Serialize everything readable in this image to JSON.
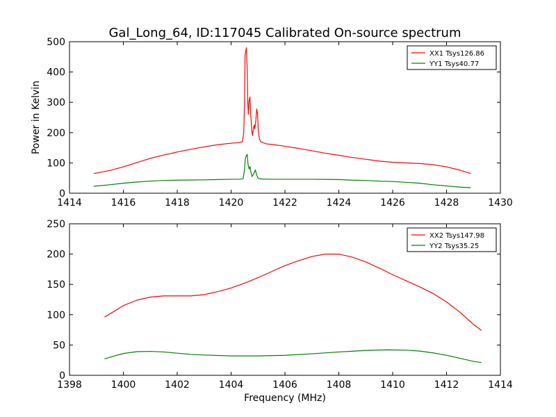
{
  "figure": {
    "title": "Gal_Long_64, ID:117045 Calibrated On-source spectrum",
    "ylabel": "Power in Kelvin",
    "xlabel": "Frequency (MHz)"
  },
  "chart_data": [
    {
      "type": "line",
      "xlim": [
        1414,
        1430
      ],
      "ylim": [
        0,
        500
      ],
      "xticks": [
        "1414",
        "1416",
        "1418",
        "1420",
        "1422",
        "1424",
        "1426",
        "1428",
        "1430"
      ],
      "yticks": [
        "0",
        "100",
        "200",
        "300",
        "400",
        "500"
      ],
      "legend_position": "top-right",
      "series": [
        {
          "name": "XX1 Tsys126.86",
          "color": "#ff0000",
          "points": [
            [
              1414.9,
              65
            ],
            [
              1415.5,
              75
            ],
            [
              1416,
              87
            ],
            [
              1416.5,
              101
            ],
            [
              1417,
              115
            ],
            [
              1417.5,
              126
            ],
            [
              1418,
              136
            ],
            [
              1418.5,
              145
            ],
            [
              1419,
              153
            ],
            [
              1419.5,
              160
            ],
            [
              1420,
              165
            ],
            [
              1420.3,
              167
            ],
            [
              1420.42,
              170
            ],
            [
              1420.47,
              200
            ],
            [
              1420.5,
              300
            ],
            [
              1420.52,
              455
            ],
            [
              1420.55,
              472
            ],
            [
              1420.57,
              480
            ],
            [
              1420.6,
              400
            ],
            [
              1420.62,
              300
            ],
            [
              1420.64,
              260
            ],
            [
              1420.67,
              305
            ],
            [
              1420.7,
              318
            ],
            [
              1420.73,
              260
            ],
            [
              1420.77,
              205
            ],
            [
              1420.8,
              190
            ],
            [
              1420.83,
              215
            ],
            [
              1420.86,
              225
            ],
            [
              1420.88,
              212
            ],
            [
              1420.92,
              240
            ],
            [
              1420.95,
              278
            ],
            [
              1420.98,
              265
            ],
            [
              1421.01,
              210
            ],
            [
              1421.05,
              180
            ],
            [
              1421.1,
              170
            ],
            [
              1421.3,
              163
            ],
            [
              1421.6,
              160
            ],
            [
              1422,
              155
            ],
            [
              1422.5,
              148
            ],
            [
              1423,
              140
            ],
            [
              1423.5,
              132
            ],
            [
              1424,
              125
            ],
            [
              1424.5,
              118
            ],
            [
              1425,
              112
            ],
            [
              1425.5,
              106
            ],
            [
              1426,
              102
            ],
            [
              1426.5,
              100
            ],
            [
              1427,
              98
            ],
            [
              1427.5,
              94
            ],
            [
              1428,
              87
            ],
            [
              1428.5,
              76
            ],
            [
              1428.9,
              65
            ]
          ]
        },
        {
          "name": "YY1 Tsys40.77",
          "color": "#008000",
          "points": [
            [
              1414.9,
              23
            ],
            [
              1415.5,
              28
            ],
            [
              1416,
              33
            ],
            [
              1416.5,
              37
            ],
            [
              1417,
              40
            ],
            [
              1417.5,
              42
            ],
            [
              1418,
              43
            ],
            [
              1418.5,
              43.5
            ],
            [
              1419,
              44
            ],
            [
              1419.5,
              45
            ],
            [
              1420,
              46
            ],
            [
              1420.3,
              46
            ],
            [
              1420.45,
              48
            ],
            [
              1420.5,
              80
            ],
            [
              1420.53,
              115
            ],
            [
              1420.57,
              125
            ],
            [
              1420.6,
              128
            ],
            [
              1420.63,
              95
            ],
            [
              1420.67,
              80
            ],
            [
              1420.7,
              88
            ],
            [
              1420.73,
              72
            ],
            [
              1420.78,
              55
            ],
            [
              1420.83,
              62
            ],
            [
              1420.87,
              70
            ],
            [
              1420.9,
              77
            ],
            [
              1420.95,
              60
            ],
            [
              1421,
              50
            ],
            [
              1421.1,
              47
            ],
            [
              1421.5,
              46
            ],
            [
              1422,
              46
            ],
            [
              1423,
              46
            ],
            [
              1423.5,
              45.5
            ],
            [
              1424,
              45
            ],
            [
              1424.5,
              43
            ],
            [
              1425,
              42
            ],
            [
              1425.5,
              40
            ],
            [
              1426,
              38.5
            ],
            [
              1426.5,
              36
            ],
            [
              1427,
              33
            ],
            [
              1427.5,
              28
            ],
            [
              1428,
              24
            ],
            [
              1428.5,
              20
            ],
            [
              1428.9,
              18
            ]
          ]
        }
      ]
    },
    {
      "type": "line",
      "xlim": [
        1398,
        1414
      ],
      "ylim": [
        0,
        250
      ],
      "xticks": [
        "1398",
        "1400",
        "1402",
        "1404",
        "1406",
        "1408",
        "1410",
        "1412",
        "1414"
      ],
      "yticks": [
        "0",
        "50",
        "100",
        "150",
        "200",
        "250"
      ],
      "legend_position": "top-right",
      "series": [
        {
          "name": "XX2 Tsys147.98",
          "color": "#ff0000",
          "points": [
            [
              1399.3,
              96
            ],
            [
              1399.6,
              104
            ],
            [
              1400,
              115
            ],
            [
              1400.5,
              124
            ],
            [
              1401,
              129
            ],
            [
              1401.5,
              131
            ],
            [
              1402,
              131
            ],
            [
              1402.5,
              131
            ],
            [
              1403,
              133
            ],
            [
              1403.5,
              138
            ],
            [
              1404,
              144
            ],
            [
              1404.5,
              152
            ],
            [
              1405,
              161
            ],
            [
              1405.5,
              171
            ],
            [
              1406,
              181
            ],
            [
              1406.5,
              189
            ],
            [
              1407,
              196
            ],
            [
              1407.5,
              200
            ],
            [
              1408,
              200
            ],
            [
              1408.5,
              195
            ],
            [
              1409,
              187
            ],
            [
              1409.5,
              177
            ],
            [
              1410,
              166
            ],
            [
              1410.5,
              156
            ],
            [
              1411,
              146
            ],
            [
              1411.5,
              135
            ],
            [
              1412,
              121
            ],
            [
              1412.5,
              104
            ],
            [
              1413,
              84
            ],
            [
              1413.3,
              74
            ]
          ]
        },
        {
          "name": "YY2 Tsys35.25",
          "color": "#008000",
          "points": [
            [
              1399.3,
              27
            ],
            [
              1399.6,
              31
            ],
            [
              1400,
              36
            ],
            [
              1400.5,
              39
            ],
            [
              1401,
              39.5
            ],
            [
              1401.5,
              38.5
            ],
            [
              1402,
              36.5
            ],
            [
              1402.5,
              34.5
            ],
            [
              1403,
              33.5
            ],
            [
              1404,
              32
            ],
            [
              1405,
              32
            ],
            [
              1406,
              33
            ],
            [
              1407,
              35.5
            ],
            [
              1408,
              38.5
            ],
            [
              1409,
              41
            ],
            [
              1409.8,
              42
            ],
            [
              1410.5,
              41.5
            ],
            [
              1411,
              40
            ],
            [
              1411.5,
              37
            ],
            [
              1412,
              33
            ],
            [
              1412.5,
              28
            ],
            [
              1413,
              23
            ],
            [
              1413.3,
              21
            ]
          ]
        }
      ]
    }
  ]
}
